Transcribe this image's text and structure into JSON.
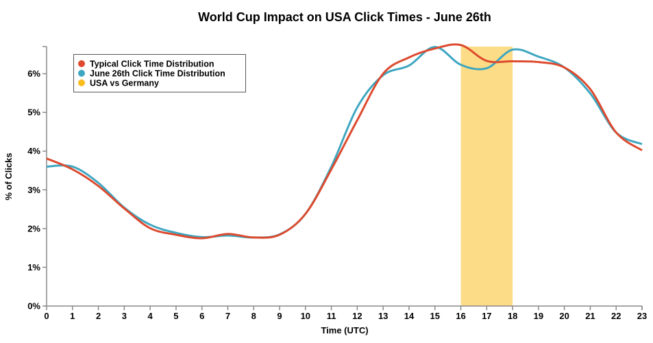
{
  "chart_data": {
    "type": "line",
    "title": "World Cup Impact on USA Click Times - June 26th",
    "xlabel": "Time (UTC)",
    "ylabel": "% of Clicks",
    "x": [
      0,
      1,
      2,
      3,
      4,
      5,
      6,
      7,
      8,
      9,
      10,
      11,
      12,
      13,
      14,
      15,
      16,
      17,
      18,
      19,
      20,
      21,
      22,
      23
    ],
    "xlim": [
      0,
      23
    ],
    "ylim": [
      0,
      6.7
    ],
    "yticks": [
      0,
      1,
      2,
      3,
      4,
      5,
      6
    ],
    "ytick_labels": [
      "0%",
      "1%",
      "2%",
      "3%",
      "4%",
      "5%",
      "6%"
    ],
    "xtick_labels": [
      "0",
      "1",
      "2",
      "3",
      "4",
      "5",
      "6",
      "7",
      "8",
      "9",
      "10",
      "11",
      "12",
      "13",
      "14",
      "15",
      "16",
      "17",
      "18",
      "19",
      "20",
      "21",
      "22",
      "23"
    ],
    "grid": false,
    "legend_position": "top-left",
    "series": [
      {
        "name": "Typical Click Time Distribution",
        "color": "#dd4a2e",
        "values": [
          3.81,
          3.53,
          3.1,
          2.52,
          2.01,
          1.84,
          1.75,
          1.86,
          1.77,
          1.84,
          2.38,
          3.53,
          4.8,
          6.0,
          6.42,
          6.65,
          6.74,
          6.33,
          6.32,
          6.3,
          6.16,
          5.6,
          4.48,
          4.02
        ]
      },
      {
        "name": "June 26th Click Time Distribution",
        "color": "#3ea6c0",
        "values": [
          3.6,
          3.6,
          3.18,
          2.54,
          2.1,
          1.89,
          1.78,
          1.82,
          1.77,
          1.85,
          2.38,
          3.6,
          5.13,
          5.96,
          6.21,
          6.69,
          6.23,
          6.14,
          6.62,
          6.44,
          6.16,
          5.49,
          4.48,
          4.18
        ]
      }
    ],
    "annotations": [
      {
        "name": "USA vs Germany",
        "type": "span",
        "x_start": 16,
        "x_end": 18,
        "color": "#fcdc87",
        "legend_color": "#f9bd1e"
      }
    ]
  }
}
